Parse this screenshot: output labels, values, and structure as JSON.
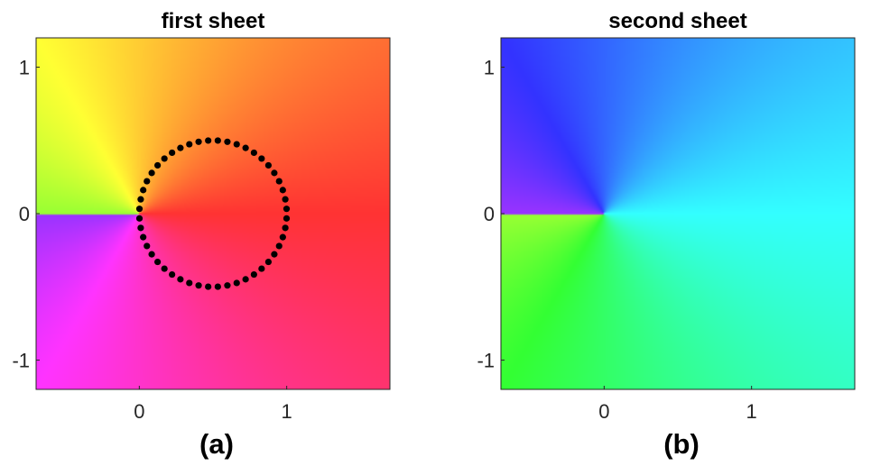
{
  "chart_data": [
    {
      "type": "heatmap",
      "panel_label": "(a)",
      "title": "first sheet",
      "xlabel": "",
      "ylabel": "",
      "xlim": [
        -0.7,
        1.7
      ],
      "ylim": [
        -1.2,
        1.2
      ],
      "xticks": [
        0,
        1
      ],
      "yticks": [
        -1,
        0,
        1
      ],
      "xtick_labels": [
        "0",
        "1"
      ],
      "ytick_labels": [
        "-1",
        "0",
        "1"
      ],
      "grid": false,
      "colormap": "hsv phase (hue follows argument of z)",
      "branch_cut": {
        "from": [
          -0.7,
          0
        ],
        "to": [
          0,
          0
        ]
      },
      "overlay": {
        "type": "scatter",
        "marker_color": "#000000",
        "center": [
          0.5,
          0
        ],
        "radius": 0.5,
        "points": 48
      }
    },
    {
      "type": "heatmap",
      "panel_label": "(b)",
      "title": "second sheet",
      "xlabel": "",
      "ylabel": "",
      "xlim": [
        -0.7,
        1.7
      ],
      "ylim": [
        -1.2,
        1.2
      ],
      "xticks": [
        0,
        1
      ],
      "yticks": [
        -1,
        0,
        1
      ],
      "xtick_labels": [
        "0",
        "1"
      ],
      "ytick_labels": [
        "-1",
        "0",
        "1"
      ],
      "grid": false,
      "colormap": "hsv phase (hue follows argument of z)",
      "branch_cut": {
        "from": [
          -0.7,
          0
        ],
        "to": [
          0,
          0
        ]
      }
    }
  ]
}
